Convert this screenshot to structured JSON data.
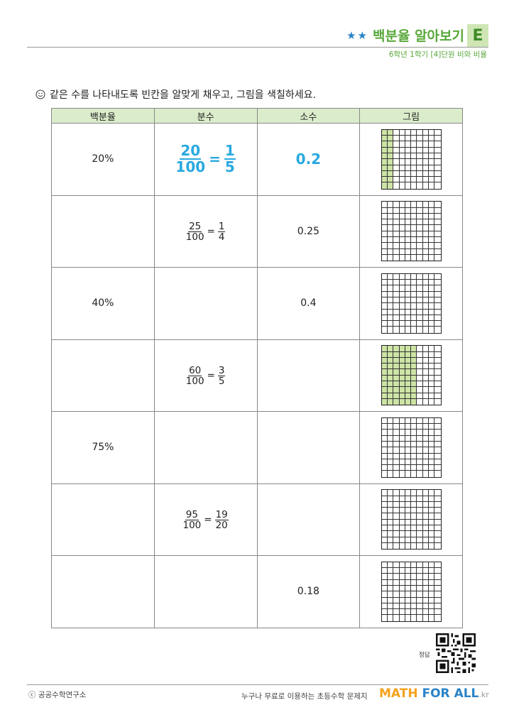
{
  "header": {
    "stars": "★★",
    "title": "백분율 알아보기",
    "level": "E",
    "subtitle": "6학년 1학기 [4]단원 비와 비율"
  },
  "instruction": {
    "icon": "smiley-icon",
    "text": "같은 수를 나타내도록 빈칸을 알맞게 채우고, 그림을 색칠하세요."
  },
  "table": {
    "headers": [
      "백분율",
      "분수",
      "소수",
      "그림"
    ],
    "rows": [
      {
        "percent": "20%",
        "fraction": {
          "n1": "20",
          "d1": "100",
          "n2": "1",
          "d2": "5"
        },
        "fraction_is_answer": true,
        "decimal": "0.2",
        "decimal_is_answer": true,
        "shaded_fraction": 0.2
      },
      {
        "percent": "",
        "fraction": {
          "n1": "25",
          "d1": "100",
          "n2": "1",
          "d2": "4"
        },
        "fraction_is_answer": false,
        "decimal": "0.25",
        "decimal_is_answer": false,
        "shaded_fraction": 0
      },
      {
        "percent": "40%",
        "fraction": null,
        "fraction_is_answer": false,
        "decimal": "0.4",
        "decimal_is_answer": false,
        "shaded_fraction": 0
      },
      {
        "percent": "",
        "fraction": {
          "n1": "60",
          "d1": "100",
          "n2": "3",
          "d2": "5"
        },
        "fraction_is_answer": false,
        "decimal": "",
        "decimal_is_answer": false,
        "shaded_fraction": 0.6
      },
      {
        "percent": "75%",
        "fraction": null,
        "fraction_is_answer": false,
        "decimal": "",
        "decimal_is_answer": false,
        "shaded_fraction": 0
      },
      {
        "percent": "",
        "fraction": {
          "n1": "95",
          "d1": "100",
          "n2": "19",
          "d2": "20"
        },
        "fraction_is_answer": false,
        "decimal": "",
        "decimal_is_answer": false,
        "shaded_fraction": 0
      },
      {
        "percent": "",
        "fraction": null,
        "fraction_is_answer": false,
        "decimal": "0.18",
        "decimal_is_answer": false,
        "shaded_fraction": 0
      }
    ]
  },
  "qr": {
    "label": "정답"
  },
  "footer": {
    "copyright": "ⓒ 공공수학연구소",
    "slogan": "누구나 무료로 이용하는 초등수학 문제지",
    "brand_math": "MATH",
    "brand_forall": " FOR ALL",
    "brand_suffix": ".kr"
  },
  "colors": {
    "accent_green": "#58a83a",
    "answer_blue": "#29a9e0",
    "fill_green": "#cde4a6",
    "header_green": "#dbeccb"
  }
}
